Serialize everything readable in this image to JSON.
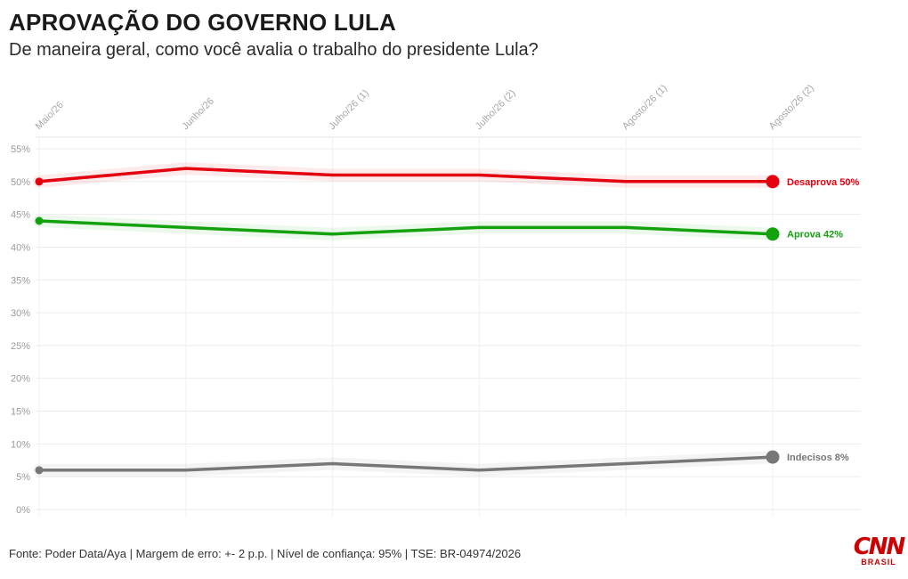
{
  "header": {
    "title": "APROVAÇÃO DO GOVERNO LULA",
    "subtitle": "De maneira geral, como você avalia o trabalho do presidente Lula?"
  },
  "footer": {
    "source": "Fonte: Poder Data/Aya | Margem de erro: +- 2 p.p. | Nível de confiança: 95% | TSE: BR-04974/2026"
  },
  "brand": {
    "name": "CNN",
    "sub": "BRASIL"
  },
  "chart_data": {
    "type": "line",
    "title": "APROVAÇÃO DO GOVERNO LULA",
    "subtitle": "De maneira geral, como você avalia o trabalho do presidente Lula?",
    "categories": [
      "Maio/26",
      "Junho/26",
      "Julho/26 (1)",
      "Julho/26 (2)",
      "Agosto/26 (1)",
      "Agosto/26 (2)"
    ],
    "ylim": [
      0,
      55
    ],
    "yticks": [
      0,
      5,
      10,
      15,
      20,
      25,
      30,
      35,
      40,
      45,
      50,
      55
    ],
    "ytick_labels": [
      "0%",
      "5%",
      "10%",
      "15%",
      "20%",
      "25%",
      "30%",
      "35%",
      "40%",
      "45%",
      "50%",
      "55%"
    ],
    "grid": true,
    "series": [
      {
        "name": "Desaprova",
        "end_label": "Desaprova 50%",
        "values": [
          50,
          52,
          51,
          51,
          50,
          50
        ],
        "color": "#e3000f"
      },
      {
        "name": "Aprova",
        "end_label": "Aprova 42%",
        "values": [
          44,
          43,
          42,
          43,
          43,
          42
        ],
        "color": "#13a10e"
      },
      {
        "name": "Indecisos",
        "end_label": "Indecisos 8%",
        "values": [
          6,
          6,
          7,
          6,
          7,
          8
        ],
        "color": "#777777"
      }
    ]
  }
}
